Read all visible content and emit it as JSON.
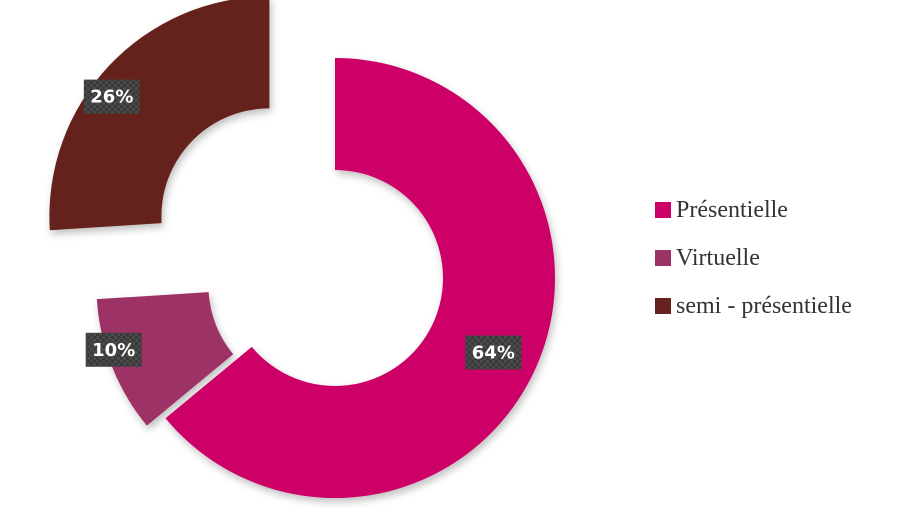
{
  "chart_data": {
    "type": "pie",
    "title": "",
    "categories": [
      "Présentielle",
      "Virtuelle",
      "semi - présentielle"
    ],
    "values": [
      64,
      10,
      26
    ],
    "data_labels": [
      "64%",
      "10%",
      "26%"
    ],
    "colors": [
      "#cc0066",
      "#9c3366",
      "#65201f"
    ],
    "legend": "right",
    "donut": true,
    "exploded": true
  }
}
